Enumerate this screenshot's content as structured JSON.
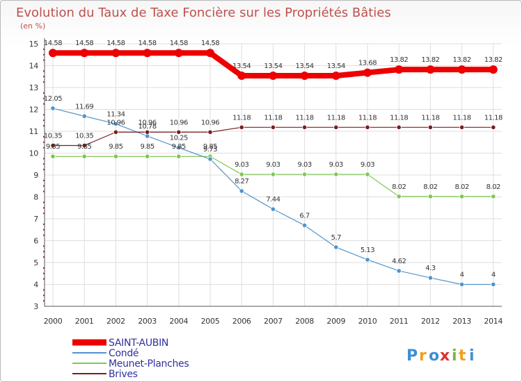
{
  "chart_data": {
    "type": "line",
    "title": "Evolution du Taux de Taxe Foncière sur les Propriétés Bâties",
    "subtitle": "(en %)",
    "x": [
      "2000",
      "2001",
      "2002",
      "2003",
      "2004",
      "2005",
      "2006",
      "2007",
      "2008",
      "2009",
      "2010",
      "2011",
      "2012",
      "2013",
      "2014"
    ],
    "ylim": [
      3,
      15
    ],
    "yticks": [
      "3",
      "4",
      "5",
      "6",
      "7",
      "8",
      "9",
      "10",
      "11",
      "12",
      "13",
      "14",
      "15"
    ],
    "grid": true,
    "legend_position": "bottom-left",
    "series": [
      {
        "name": "SAINT-AUBIN",
        "color": "#ee0000",
        "values": [
          14.58,
          14.58,
          14.58,
          14.58,
          14.58,
          14.58,
          13.54,
          13.54,
          13.54,
          13.54,
          13.68,
          13.82,
          13.82,
          13.82,
          13.82
        ],
        "labels": [
          "14.58",
          "14.58",
          "14.58",
          "14.58",
          "14.58",
          "14.58",
          "13.54",
          "13.54",
          "13.54",
          "13.54",
          "13.68",
          "13.82",
          "13.82",
          "13.82",
          "13.82"
        ]
      },
      {
        "name": "Condé",
        "color": "#4f94cd",
        "values": [
          12.05,
          11.69,
          11.34,
          10.78,
          10.25,
          9.73,
          8.27,
          7.44,
          6.7,
          5.7,
          5.13,
          4.62,
          4.3,
          4,
          4
        ],
        "labels": [
          "12.05",
          "11.69",
          "11.34",
          "10.78",
          "10.25",
          "9.73",
          "8.27",
          "7.44",
          "6.7",
          "5.7",
          "5.13",
          "4.62",
          "4.3",
          "4",
          "4"
        ]
      },
      {
        "name": "Meunet-Planches",
        "color": "#7ec850",
        "values": [
          9.85,
          9.85,
          9.85,
          9.85,
          9.85,
          9.85,
          9.03,
          9.03,
          9.03,
          9.03,
          9.03,
          8.02,
          8.02,
          8.02,
          8.02
        ],
        "labels": [
          "9.85",
          "9.85",
          "9.85",
          "9.85",
          "9.85",
          "9.85",
          "9.03",
          "9.03",
          "9.03",
          "9.03",
          "9.03",
          "8.02",
          "8.02",
          "8.02",
          "8.02"
        ]
      },
      {
        "name": "Brives",
        "color": "#7a1e1e",
        "values": [
          10.35,
          10.35,
          10.96,
          10.96,
          10.96,
          10.96,
          11.18,
          11.18,
          11.18,
          11.18,
          11.18,
          11.18,
          11.18,
          11.18,
          11.18
        ],
        "labels": [
          "10.35",
          "10.35",
          "10.96",
          "10.96",
          "10.96",
          "10.96",
          "11.18",
          "11.18",
          "11.18",
          "11.18",
          "11.18",
          "11.18",
          "11.18",
          "11.18",
          "11.18"
        ]
      }
    ]
  },
  "brand": {
    "letters": [
      "P",
      "r",
      "o",
      "x",
      "i",
      "t",
      "i"
    ]
  }
}
